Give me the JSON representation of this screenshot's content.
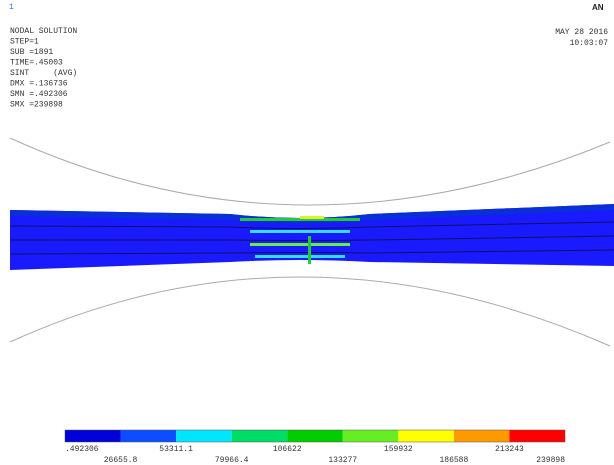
{
  "window_number": "1",
  "logo": "AN",
  "info": {
    "lines": [
      "NODAL SOLUTION",
      "STEP=1",
      "SUB =1891",
      "TIME=.45003",
      "SINT     (AVG)",
      "DMX =.136736",
      "SMN =.492306",
      "SMX =239898"
    ]
  },
  "timestamp": {
    "date": "MAY 28 2016",
    "time": "10:03:07"
  },
  "legend": {
    "labels": [
      ".492306",
      "26655.8",
      "53311.1",
      "79966.4",
      "106622",
      "133277",
      "159932",
      "186588",
      "213243",
      "239898"
    ]
  }
}
